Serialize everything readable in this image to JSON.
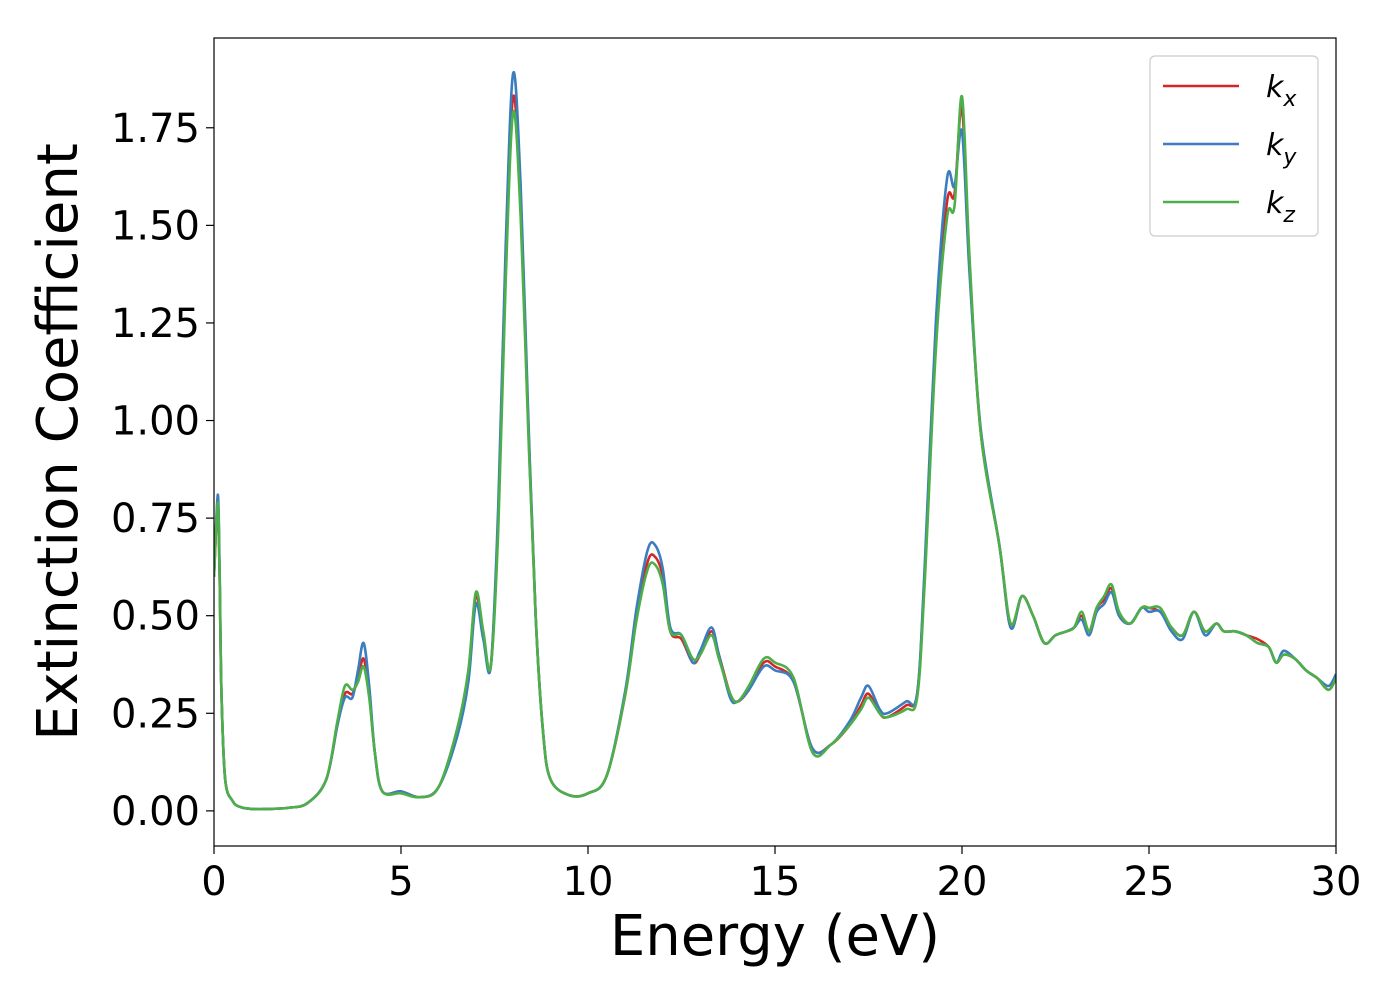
{
  "chart_data": {
    "type": "line",
    "title": "",
    "xlabel": "Energy (eV)",
    "ylabel": "Extinction Coefficient",
    "xlim": [
      0,
      30
    ],
    "ylim": [
      -0.09,
      1.98
    ],
    "xticks": [
      0,
      5,
      10,
      15,
      20,
      25,
      30
    ],
    "xtick_labels": [
      "0",
      "5",
      "10",
      "15",
      "20",
      "25",
      "30"
    ],
    "yticks": [
      0.0,
      0.25,
      0.5,
      0.75,
      1.0,
      1.25,
      1.5,
      1.75
    ],
    "ytick_labels": [
      "0.00",
      "0.25",
      "0.50",
      "0.75",
      "1.00",
      "1.25",
      "1.50",
      "1.75"
    ],
    "grid": false,
    "legend_position": "top-right",
    "x": [
      0,
      0.1,
      0.15,
      0.2,
      0.3,
      0.5,
      0.7,
      1.0,
      1.5,
      2.0,
      2.5,
      3.0,
      3.3,
      3.5,
      3.7,
      3.85,
      4.0,
      4.15,
      4.3,
      4.5,
      5.0,
      5.5,
      6.0,
      6.5,
      6.8,
      7.0,
      7.2,
      7.4,
      7.6,
      7.8,
      8.0,
      8.2,
      8.4,
      8.6,
      8.8,
      9.0,
      9.5,
      10.0,
      10.5,
      11.0,
      11.3,
      11.6,
      11.8,
      12.0,
      12.2,
      12.5,
      12.8,
      13.0,
      13.3,
      13.5,
      13.8,
      14.0,
      14.3,
      14.7,
      15.0,
      15.5,
      16.0,
      16.5,
      17.0,
      17.3,
      17.5,
      17.8,
      18.0,
      18.5,
      18.8,
      19.0,
      19.3,
      19.6,
      19.8,
      20.0,
      20.2,
      20.5,
      21.0,
      21.3,
      21.6,
      21.9,
      22.2,
      22.5,
      22.8,
      23.0,
      23.2,
      23.4,
      23.6,
      23.8,
      24.0,
      24.2,
      24.5,
      24.8,
      25.0,
      25.3,
      25.6,
      25.9,
      26.2,
      26.5,
      26.8,
      27.0,
      27.3,
      27.6,
      27.9,
      28.2,
      28.4,
      28.6,
      28.9,
      29.2,
      29.5,
      29.8,
      30.0
    ],
    "series": [
      {
        "name": "k_x",
        "color": "#d62728",
        "values": [
          0.6,
          0.78,
          0.6,
          0.3,
          0.08,
          0.025,
          0.01,
          0.005,
          0.005,
          0.008,
          0.02,
          0.08,
          0.22,
          0.3,
          0.3,
          0.34,
          0.39,
          0.3,
          0.15,
          0.05,
          0.05,
          0.035,
          0.06,
          0.2,
          0.35,
          0.55,
          0.45,
          0.37,
          0.75,
          1.4,
          1.83,
          1.55,
          1.0,
          0.5,
          0.2,
          0.08,
          0.04,
          0.045,
          0.09,
          0.3,
          0.5,
          0.64,
          0.65,
          0.6,
          0.46,
          0.44,
          0.38,
          0.4,
          0.46,
          0.4,
          0.3,
          0.28,
          0.31,
          0.38,
          0.37,
          0.33,
          0.16,
          0.17,
          0.22,
          0.27,
          0.3,
          0.25,
          0.24,
          0.27,
          0.3,
          0.6,
          1.2,
          1.56,
          1.58,
          1.8,
          1.4,
          0.97,
          0.68,
          0.47,
          0.55,
          0.5,
          0.43,
          0.45,
          0.46,
          0.47,
          0.5,
          0.46,
          0.52,
          0.54,
          0.57,
          0.5,
          0.48,
          0.52,
          0.52,
          0.51,
          0.47,
          0.45,
          0.51,
          0.46,
          0.48,
          0.46,
          0.46,
          0.45,
          0.44,
          0.42,
          0.38,
          0.4,
          0.39,
          0.36,
          0.34,
          0.31,
          0.34
        ]
      },
      {
        "name": "k_y",
        "color": "#3b7dbf",
        "values": [
          0.6,
          0.81,
          0.62,
          0.3,
          0.08,
          0.025,
          0.01,
          0.005,
          0.005,
          0.008,
          0.02,
          0.08,
          0.22,
          0.29,
          0.29,
          0.36,
          0.43,
          0.32,
          0.15,
          0.05,
          0.05,
          0.035,
          0.06,
          0.19,
          0.33,
          0.53,
          0.44,
          0.37,
          0.78,
          1.45,
          1.89,
          1.6,
          1.02,
          0.5,
          0.2,
          0.08,
          0.04,
          0.045,
          0.09,
          0.31,
          0.52,
          0.67,
          0.68,
          0.62,
          0.47,
          0.45,
          0.38,
          0.41,
          0.47,
          0.4,
          0.29,
          0.28,
          0.31,
          0.37,
          0.36,
          0.33,
          0.16,
          0.17,
          0.23,
          0.29,
          0.32,
          0.26,
          0.25,
          0.28,
          0.3,
          0.62,
          1.25,
          1.62,
          1.6,
          1.74,
          1.38,
          0.98,
          0.68,
          0.47,
          0.55,
          0.5,
          0.43,
          0.45,
          0.46,
          0.47,
          0.49,
          0.45,
          0.51,
          0.53,
          0.56,
          0.5,
          0.48,
          0.52,
          0.51,
          0.51,
          0.46,
          0.44,
          0.51,
          0.45,
          0.48,
          0.46,
          0.46,
          0.45,
          0.43,
          0.42,
          0.38,
          0.41,
          0.39,
          0.36,
          0.34,
          0.32,
          0.35
        ]
      },
      {
        "name": "k_z",
        "color": "#4daf4a",
        "values": [
          0.6,
          0.79,
          0.6,
          0.3,
          0.08,
          0.025,
          0.01,
          0.005,
          0.005,
          0.008,
          0.02,
          0.08,
          0.23,
          0.32,
          0.31,
          0.33,
          0.37,
          0.29,
          0.15,
          0.05,
          0.045,
          0.035,
          0.06,
          0.21,
          0.36,
          0.56,
          0.46,
          0.37,
          0.72,
          1.36,
          1.79,
          1.52,
          0.98,
          0.5,
          0.2,
          0.08,
          0.04,
          0.045,
          0.09,
          0.3,
          0.49,
          0.62,
          0.63,
          0.58,
          0.46,
          0.45,
          0.39,
          0.4,
          0.45,
          0.39,
          0.3,
          0.28,
          0.32,
          0.39,
          0.38,
          0.34,
          0.15,
          0.17,
          0.22,
          0.26,
          0.29,
          0.25,
          0.24,
          0.26,
          0.29,
          0.58,
          1.18,
          1.52,
          1.55,
          1.83,
          1.42,
          0.97,
          0.68,
          0.48,
          0.55,
          0.5,
          0.43,
          0.45,
          0.46,
          0.47,
          0.51,
          0.46,
          0.52,
          0.55,
          0.58,
          0.51,
          0.48,
          0.52,
          0.52,
          0.52,
          0.47,
          0.45,
          0.51,
          0.46,
          0.48,
          0.46,
          0.46,
          0.45,
          0.43,
          0.42,
          0.38,
          0.4,
          0.39,
          0.36,
          0.34,
          0.31,
          0.34
        ]
      }
    ],
    "legend": {
      "entries": [
        {
          "base": "k",
          "sub": "x",
          "color": "#d62728"
        },
        {
          "base": "k",
          "sub": "y",
          "color": "#3b7dbf"
        },
        {
          "base": "k",
          "sub": "z",
          "color": "#4daf4a"
        }
      ]
    }
  }
}
